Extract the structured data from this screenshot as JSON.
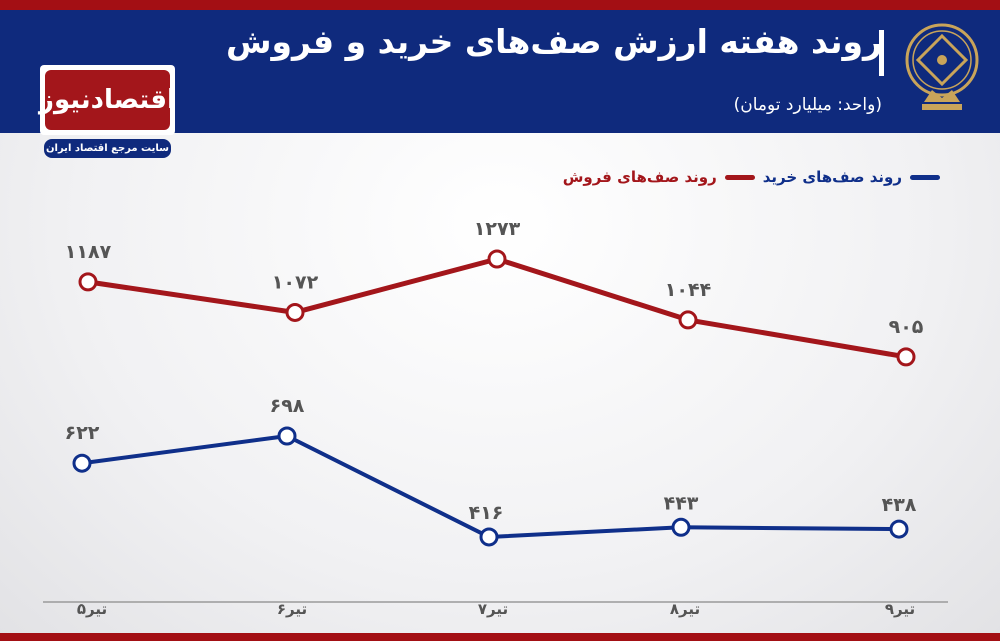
{
  "header": {
    "title": "روند هفته ارزش صف‌های خرید و فروش",
    "unit": "(واحد: میلیارد تومان)"
  },
  "logo": {
    "name": "اقتصادنیوز",
    "tagline": "سایت مرجع اقتصاد ایران"
  },
  "colors": {
    "header": "#0f2a7d",
    "accent": "#a30f14",
    "buy": "#0f2f8a",
    "sell": "#a3161b"
  },
  "chart_data": {
    "type": "line",
    "title": "روند هفته ارزش صف‌های خرید و فروش",
    "categories": [
      "۵تیر",
      "۶تیر",
      "۷تیر",
      "۸تیر",
      "۹تیر"
    ],
    "legend_placement": "top-right",
    "grid": false,
    "series": [
      {
        "name": "روند صف‌های خرید",
        "color": "#0f2f8a",
        "values": [
          622,
          698,
          416,
          443,
          438
        ],
        "labels": [
          "۶۲۲",
          "۶۹۸",
          "۴۱۶",
          "۴۴۳",
          "۴۳۸"
        ]
      },
      {
        "name": "روند صف‌های فروش",
        "color": "#a3161b",
        "values": [
          1187,
          1072,
          1273,
          1044,
          905
        ],
        "labels": [
          "۱۱۸۷",
          "۱۰۷۲",
          "۱۲۷۳",
          "۱۰۴۴",
          "۹۰۵"
        ]
      }
    ]
  }
}
